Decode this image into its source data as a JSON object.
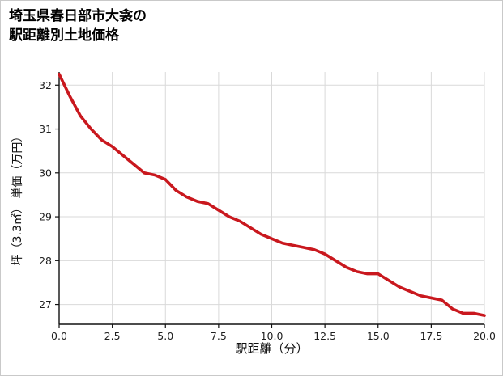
{
  "title": {
    "line1": "埼玉県春日部市大衾の",
    "line2": "駅距離別土地価格"
  },
  "chart_data": {
    "type": "line",
    "title": "埼玉県春日部市大衾の駅距離別土地価格",
    "xlabel": "駅距離（分）",
    "ylabel": "坪（3.3㎡） 単価（万円）",
    "x": [
      0,
      0.5,
      1,
      1.5,
      2,
      2.5,
      3,
      3.5,
      4,
      4.5,
      5,
      5.5,
      6,
      6.5,
      7,
      7.5,
      8,
      8.5,
      9,
      9.5,
      10,
      10.5,
      11,
      11.5,
      12,
      12.5,
      13,
      13.5,
      14,
      14.5,
      15,
      15.5,
      16,
      16.5,
      17,
      17.5,
      18,
      18.5,
      19,
      19.5,
      20
    ],
    "y": [
      32.25,
      31.75,
      31.3,
      31.0,
      30.75,
      30.6,
      30.4,
      30.2,
      30.0,
      29.95,
      29.85,
      29.6,
      29.45,
      29.35,
      29.3,
      29.15,
      29.0,
      28.9,
      28.75,
      28.6,
      28.5,
      28.4,
      28.35,
      28.3,
      28.25,
      28.15,
      28.0,
      27.85,
      27.75,
      27.7,
      27.7,
      27.55,
      27.4,
      27.3,
      27.2,
      27.15,
      27.1,
      26.9,
      26.8,
      26.8,
      26.75
    ],
    "xlim": [
      0,
      20
    ],
    "ylim": [
      26.55,
      32.3
    ],
    "xticks": [
      0,
      2.5,
      5,
      7.5,
      10,
      12.5,
      15,
      17.5,
      20
    ],
    "xtick_labels": [
      "0.0",
      "2.5",
      "5.0",
      "7.5",
      "10.0",
      "12.5",
      "15.0",
      "17.5",
      "20.0"
    ],
    "yticks": [
      27,
      28,
      29,
      30,
      31,
      32
    ],
    "ytick_labels": [
      "27",
      "28",
      "29",
      "30",
      "31",
      "32"
    ],
    "grid": true,
    "legend": "none",
    "line_color": "#c9181e",
    "line_width": 3.6,
    "grid_color": "#d9d9d9",
    "axis_color": "#111111"
  }
}
